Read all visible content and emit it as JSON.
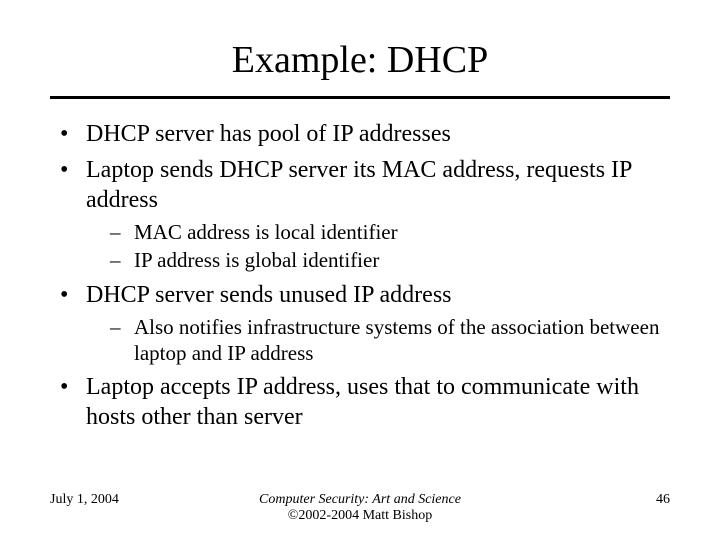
{
  "title": "Example: DHCP",
  "bullets": {
    "b1": "DHCP server has pool of IP addresses",
    "b2": "Laptop sends DHCP server its MAC address, requests IP address",
    "b2a": "MAC address is local identifier",
    "b2b": "IP address is global identifier",
    "b3": "DHCP server sends unused IP address",
    "b3a": "Also notifies infrastructure systems of the association between laptop and IP address",
    "b4": "Laptop accepts IP address, uses that to communicate with hosts other than server"
  },
  "footer": {
    "date": "July 1, 2004",
    "book": "Computer Security: Art and Science",
    "copyright": "©2002-2004 Matt Bishop",
    "page": "46"
  },
  "style": {
    "background": "#ffffff",
    "text_color": "#000000",
    "title_fontsize": 38,
    "body_fontsize": 24,
    "sub_fontsize": 21,
    "footer_fontsize": 14,
    "rule_color": "#000000",
    "rule_thickness": 3
  }
}
